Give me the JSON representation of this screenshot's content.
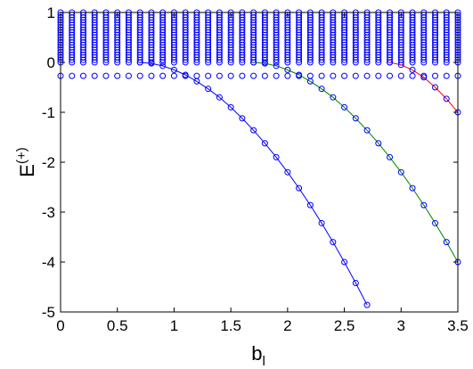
{
  "chart_data": {
    "type": "scatter",
    "xlabel": "b",
    "xlabel_sub": "l",
    "ylabel": "E",
    "ylabel_sup": "(+)",
    "xlim": [
      0,
      3.5
    ],
    "xticks": [
      0,
      0.5,
      1,
      1.5,
      2,
      2.5,
      3,
      3.5
    ],
    "ylim": [
      -5,
      1
    ],
    "yticks": [
      -5,
      -4,
      -3,
      -2,
      -1,
      0,
      1
    ],
    "marker_color": "#0000ff",
    "band": {
      "x": [
        0,
        0.1,
        0.2,
        0.3,
        0.4,
        0.5,
        0.6,
        0.7,
        0.8,
        0.9,
        1,
        1.1,
        1.2,
        1.3,
        1.4,
        1.5,
        1.6,
        1.7,
        1.8,
        1.9,
        2,
        2.1,
        2.2,
        2.3,
        2.4,
        2.5,
        2.6,
        2.7,
        2.8,
        2.9,
        3,
        3.1,
        3.2,
        3.3,
        3.4,
        3.5
      ],
      "levels": [
        -0.27,
        0,
        0.05,
        0.1,
        0.15,
        0.2,
        0.25,
        0.3,
        0.35,
        0.4,
        0.45,
        0.5,
        0.55,
        0.6,
        0.65,
        0.7,
        0.75,
        0.8,
        0.85,
        0.9,
        0.95,
        1
      ]
    },
    "series": [
      {
        "color": "#0000ff",
        "x": [
          0.7,
          0.8,
          0.9,
          1,
          1.1,
          1.2,
          1.3,
          1.4,
          1.5,
          1.6,
          1.7,
          1.8,
          1.9,
          2,
          2.1,
          2.2,
          2.3,
          2.4,
          2.5,
          2.6,
          2.7
        ],
        "values": [
          0,
          -0.02,
          -0.07,
          -0.15,
          -0.25,
          -0.38,
          -0.53,
          -0.7,
          -0.9,
          -1.12,
          -1.36,
          -1.62,
          -1.9,
          -2.2,
          -2.52,
          -2.86,
          -3.22,
          -3.6,
          -4,
          -4.42,
          -4.86
        ]
      },
      {
        "color": "#008000",
        "x": [
          1.7,
          1.8,
          1.9,
          2,
          2.1,
          2.2,
          2.3,
          2.4,
          2.5,
          2.6,
          2.7,
          2.8,
          2.9,
          3,
          3.1,
          3.2,
          3.3,
          3.4,
          3.5
        ],
        "values": [
          0,
          -0.02,
          -0.07,
          -0.15,
          -0.25,
          -0.38,
          -0.53,
          -0.7,
          -0.9,
          -1.12,
          -1.36,
          -1.62,
          -1.9,
          -2.2,
          -2.52,
          -2.86,
          -3.22,
          -3.6,
          -4
        ]
      },
      {
        "color": "#ff0000",
        "x": [
          2.9,
          3,
          3.1,
          3.2,
          3.3,
          3.4,
          3.5
        ],
        "values": [
          0,
          -0.05,
          -0.15,
          -0.3,
          -0.5,
          -0.73,
          -1
        ]
      }
    ]
  }
}
